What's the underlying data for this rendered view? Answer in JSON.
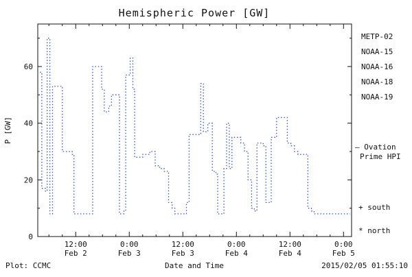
{
  "footer": {
    "left": "Plot: CCMC",
    "right": "2015/02/05 01:55:10",
    "right_color": "#00a000"
  },
  "legend": {
    "items": [
      {
        "label": "METP-02",
        "color": "#1a1a1a"
      },
      {
        "label": "NOAA-15",
        "color": "#3353c4"
      },
      {
        "label": "NOAA-16",
        "color": "#35bfd4"
      },
      {
        "label": "NOAA-18",
        "color": "#7ed07e"
      },
      {
        "label": "NOAA-19",
        "color": "#e0a050"
      }
    ]
  },
  "annotations": {
    "ovation_line1": "– Ovation",
    "ovation_line2": "Prime HPI",
    "ovation_color": "#3353c4",
    "south": "+ south",
    "north": "* north"
  },
  "chart_data": {
    "type": "line",
    "line_style": "dotted-step",
    "title": "Hemispheric Power [GW]",
    "xlabel": "Date and Time",
    "ylabel": "P [GW]",
    "xlim_hours": [
      3.5,
      73.8
    ],
    "ylim": [
      0,
      75
    ],
    "yticks": [
      0,
      20,
      40,
      60
    ],
    "yticks_minor": [
      10,
      30,
      50,
      70
    ],
    "x_ticks": [
      {
        "h": 12,
        "time": "12:00",
        "date": "Feb 2"
      },
      {
        "h": 24,
        "time": "0:00",
        "date": "Feb 3"
      },
      {
        "h": 36,
        "time": "12:00",
        "date": "Feb 3"
      },
      {
        "h": 48,
        "time": "0:00",
        "date": "Feb 4"
      },
      {
        "h": 60,
        "time": "12:00",
        "date": "Feb 4"
      },
      {
        "h": 72,
        "time": "0:00",
        "date": "Feb 5"
      }
    ],
    "x_minor_step_hours": 3,
    "line_color": "#3353c4",
    "points": [
      [
        4.0,
        58
      ],
      [
        4.4,
        17
      ],
      [
        5.2,
        16
      ],
      [
        5.6,
        70
      ],
      [
        6.2,
        8
      ],
      [
        6.8,
        53
      ],
      [
        8.2,
        53
      ],
      [
        9.0,
        30
      ],
      [
        11.2,
        29
      ],
      [
        11.6,
        8
      ],
      [
        15.4,
        8
      ],
      [
        15.8,
        60
      ],
      [
        17.2,
        60
      ],
      [
        17.8,
        52
      ],
      [
        18.4,
        44
      ],
      [
        19.4,
        46
      ],
      [
        20.0,
        50
      ],
      [
        21.4,
        50
      ],
      [
        21.8,
        8
      ],
      [
        22.8,
        9
      ],
      [
        23.2,
        57
      ],
      [
        24.2,
        63
      ],
      [
        24.8,
        52
      ],
      [
        25.2,
        28
      ],
      [
        27.0,
        29
      ],
      [
        28.6,
        30
      ],
      [
        29.8,
        25
      ],
      [
        30.8,
        24
      ],
      [
        31.8,
        23
      ],
      [
        32.8,
        12
      ],
      [
        33.6,
        10
      ],
      [
        34.2,
        8
      ],
      [
        36.4,
        8
      ],
      [
        36.8,
        12
      ],
      [
        37.4,
        36
      ],
      [
        39.6,
        36
      ],
      [
        40.0,
        54
      ],
      [
        40.6,
        37
      ],
      [
        41.6,
        40
      ],
      [
        42.6,
        23
      ],
      [
        43.4,
        22
      ],
      [
        43.8,
        8
      ],
      [
        44.8,
        8
      ],
      [
        45.2,
        24
      ],
      [
        45.8,
        40
      ],
      [
        46.4,
        24
      ],
      [
        47.0,
        35
      ],
      [
        48.4,
        35
      ],
      [
        49.0,
        33
      ],
      [
        49.8,
        30
      ],
      [
        50.6,
        20
      ],
      [
        51.4,
        10
      ],
      [
        52.0,
        9
      ],
      [
        52.6,
        33
      ],
      [
        54.0,
        32
      ],
      [
        54.6,
        12
      ],
      [
        55.2,
        12
      ],
      [
        55.8,
        35
      ],
      [
        57.0,
        42
      ],
      [
        58.6,
        42
      ],
      [
        59.4,
        33
      ],
      [
        60.2,
        32
      ],
      [
        61.0,
        30
      ],
      [
        61.8,
        29
      ],
      [
        63.4,
        29
      ],
      [
        64.0,
        10
      ],
      [
        64.8,
        9
      ],
      [
        65.4,
        8
      ],
      [
        73.5,
        8
      ]
    ]
  }
}
